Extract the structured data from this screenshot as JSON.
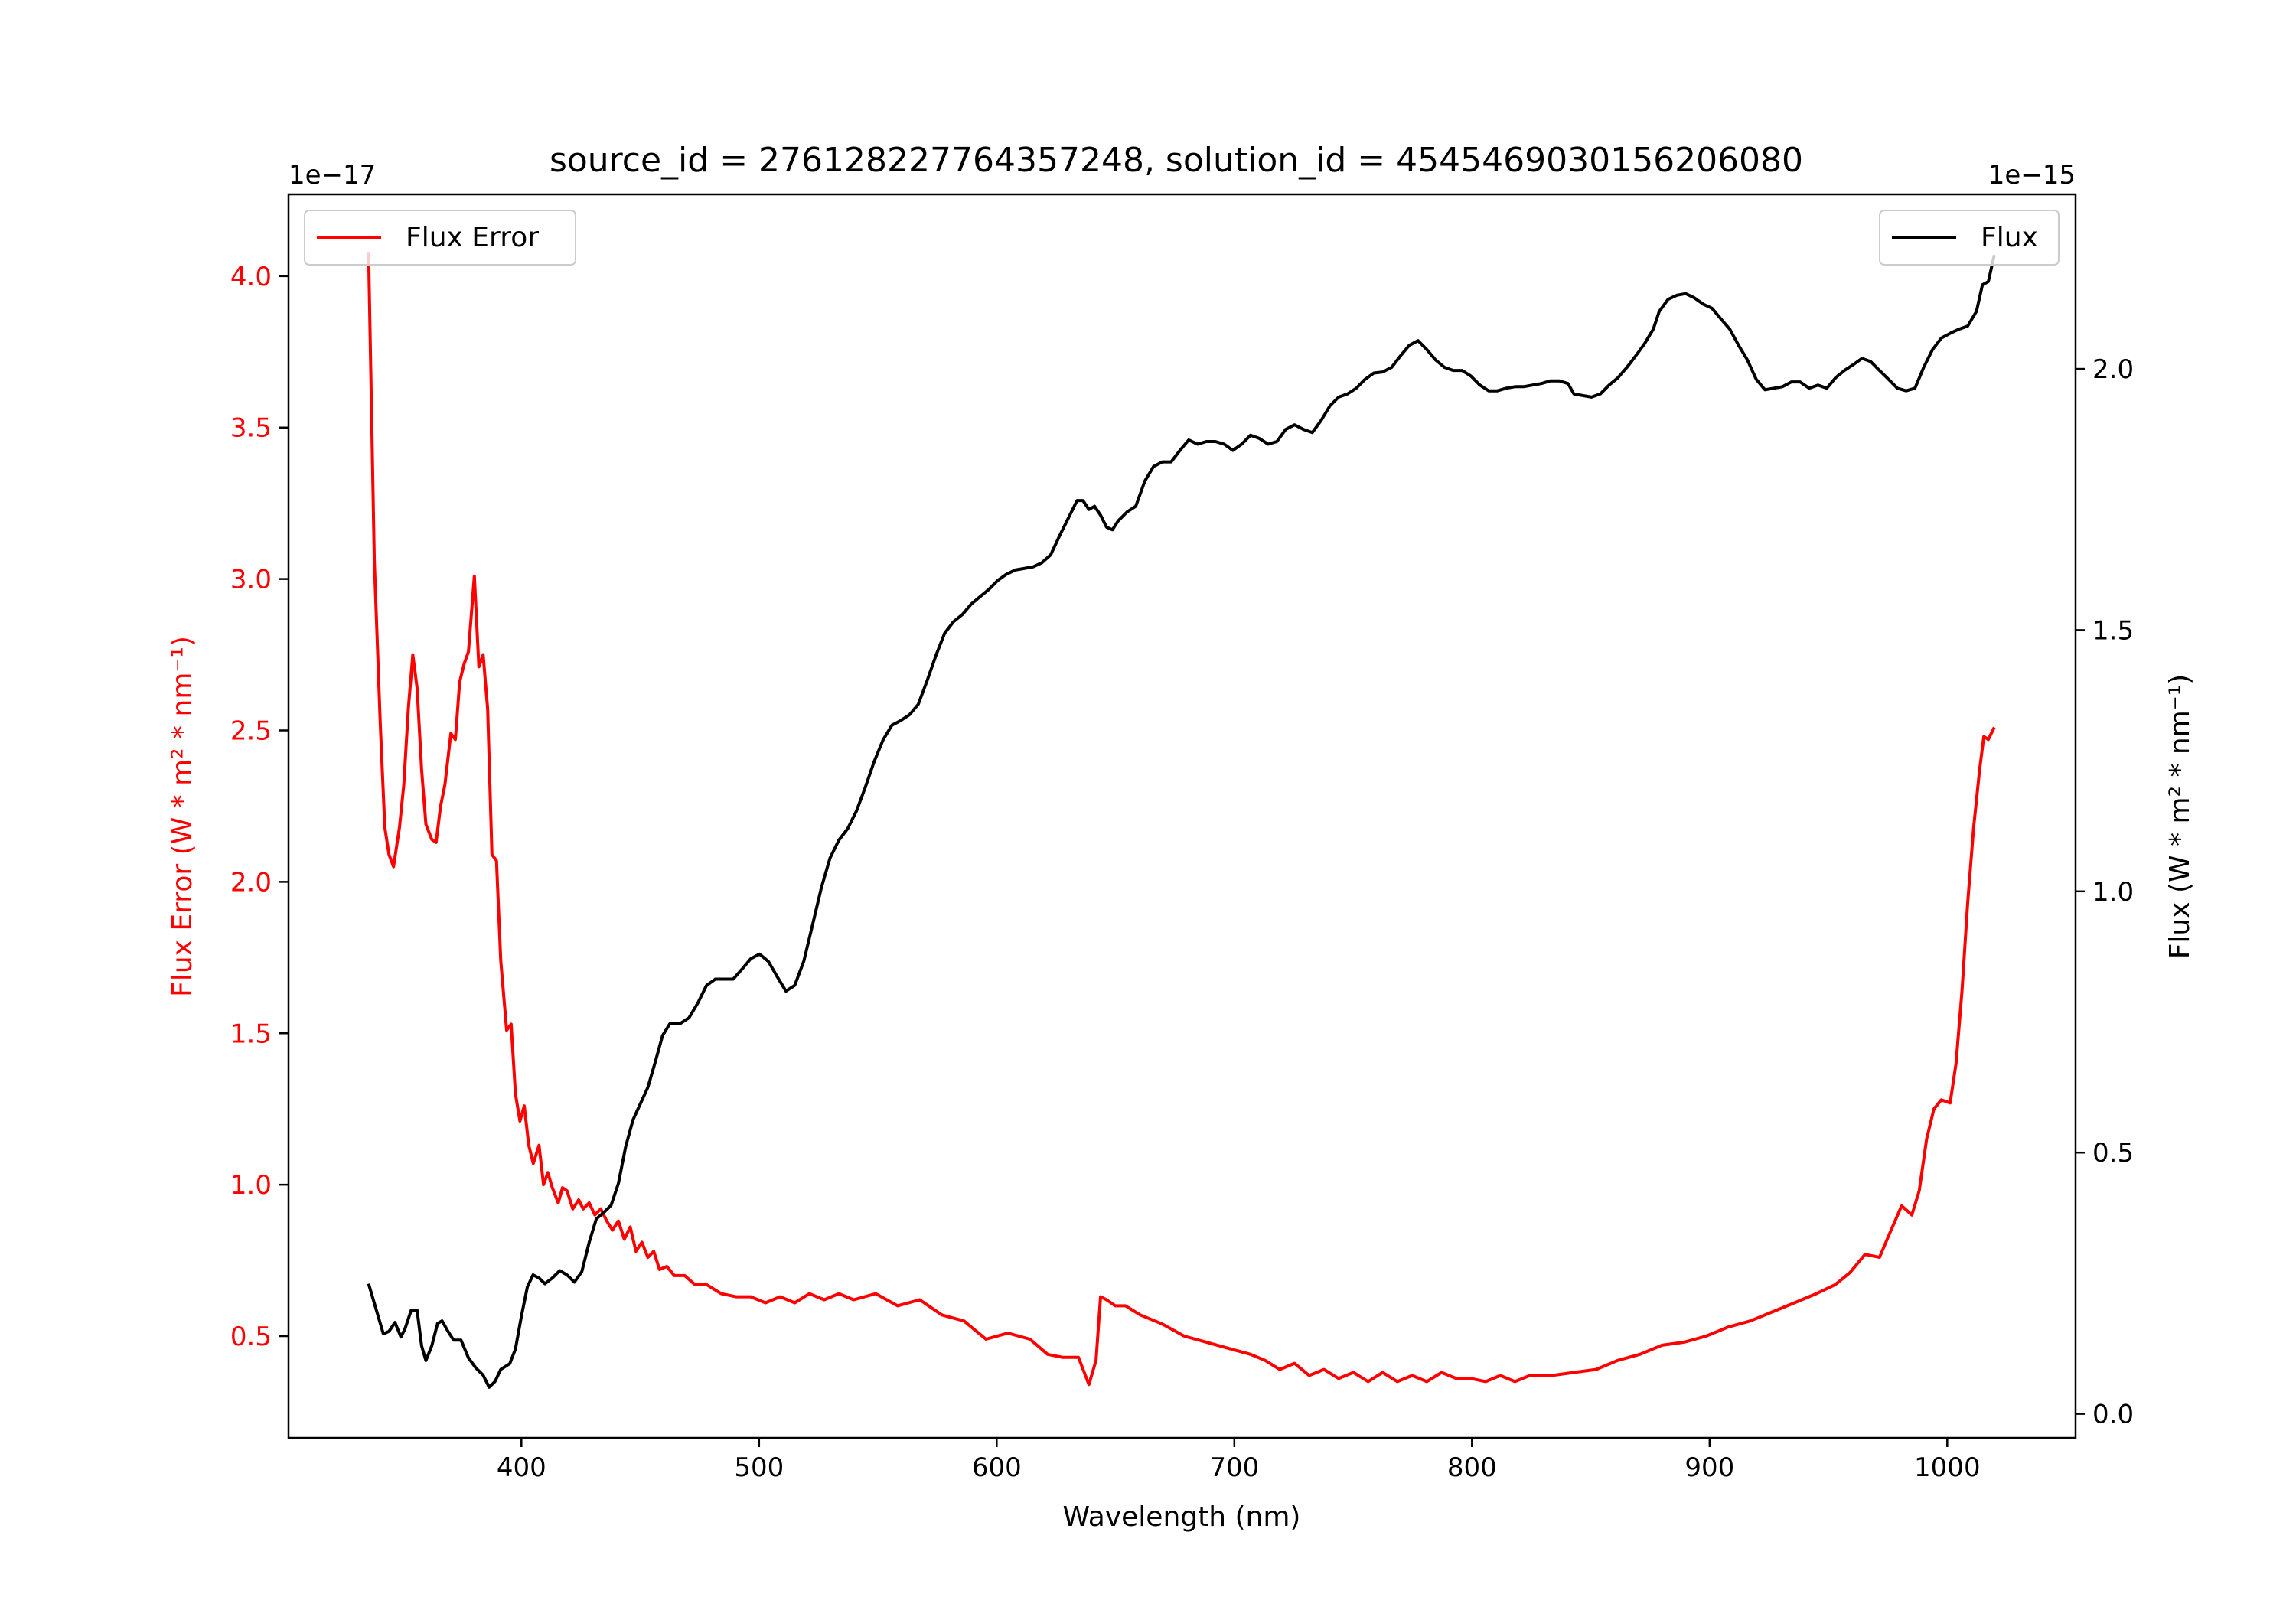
{
  "chart_data": {
    "type": "line",
    "title": "source_id = 276128227764357248, solution_id = 4545469030156206080",
    "xlabel": "Wavelength (nm)",
    "xlim": [
      302,
      1054
    ],
    "xticks": [
      400,
      500,
      600,
      700,
      800,
      900,
      1000
    ],
    "xtick_labels": [
      "400",
      "500",
      "600",
      "700",
      "800",
      "900",
      "1000"
    ],
    "left_axis": {
      "label": "Flux Error (W * m² * nm⁻¹)",
      "color": "#ff0000",
      "offset_text": "1e−17",
      "ylim": [
        0.164,
        4.27
      ],
      "ticks": [
        0.5,
        1.0,
        1.5,
        2.0,
        2.5,
        3.0,
        3.5,
        4.0
      ],
      "tick_labels": [
        "0.5",
        "1.0",
        "1.5",
        "2.0",
        "2.5",
        "3.0",
        "3.5",
        "4.0"
      ]
    },
    "right_axis": {
      "label": "Flux (W * m² * nm⁻¹)",
      "color": "#000000",
      "offset_text": "1e−15",
      "ylim": [
        -0.046,
        2.334
      ],
      "ticks": [
        0.0,
        0.5,
        1.0,
        1.5,
        2.0
      ],
      "tick_labels": [
        "0.0",
        "0.5",
        "1.0",
        "1.5",
        "2.0"
      ]
    },
    "legend_left": {
      "label": "Flux Error",
      "placement": "upper-left"
    },
    "legend_right": {
      "label": "Flux",
      "placement": "upper-right"
    },
    "series": [
      {
        "name": "Flux Error",
        "axis": "left",
        "color": "#ff0000",
        "x": [
          335.7,
          338.1,
          340.6,
          342.5,
          344.3,
          346.2,
          348.7,
          350.5,
          352.4,
          354.3,
          356.1,
          358.0,
          359.8,
          362.3,
          364.1,
          366.0,
          367.8,
          370.3,
          372.2,
          374.0,
          375.9,
          377.7,
          380.2,
          382.1,
          383.9,
          385.8,
          387.6,
          389.5,
          391.3,
          393.8,
          395.7,
          397.5,
          399.4,
          401.2,
          403.1,
          405.0,
          407.4,
          409.3,
          411.1,
          413.0,
          415.5,
          417.3,
          419.2,
          421.6,
          424.1,
          426.0,
          428.5,
          430.9,
          433.4,
          435.9,
          438.3,
          440.8,
          443.3,
          445.8,
          448.2,
          450.7,
          453.2,
          455.7,
          458.1,
          461.2,
          464.3,
          468.7,
          473.0,
          477.9,
          484.1,
          490.3,
          496.5,
          502.7,
          508.9,
          515.0,
          521.2,
          527.4,
          533.6,
          539.8,
          549.1,
          558.3,
          567.6,
          576.9,
          586.2,
          595.5,
          604.7,
          614.0,
          621.4,
          627.6,
          634.4,
          638.8,
          641.8,
          643.7,
          646.2,
          649.9,
          654.2,
          660.4,
          669.7,
          678.9,
          688.2,
          697.5,
          706.8,
          712.9,
          719.1,
          725.3,
          731.5,
          737.7,
          743.9,
          750.1,
          756.3,
          762.4,
          768.6,
          774.8,
          781.0,
          787.2,
          793.4,
          799.6,
          805.8,
          811.9,
          818.1,
          824.3,
          833.6,
          842.9,
          852.2,
          861.4,
          870.7,
          880.0,
          889.3,
          898.5,
          907.8,
          917.1,
          926.4,
          935.7,
          944.9,
          952.9,
          959.1,
          965.4,
          971.5,
          975.8,
          980.8,
          985.1,
          988.2,
          991.3,
          994.4,
          997.5,
          1001.2,
          1003.7,
          1006.2,
          1008.6,
          1011.1,
          1013.6,
          1015.4,
          1017.3,
          1019.8
        ],
        "y": [
          4.08,
          3.06,
          2.52,
          2.18,
          2.09,
          2.05,
          2.18,
          2.32,
          2.57,
          2.75,
          2.64,
          2.37,
          2.19,
          2.14,
          2.13,
          2.25,
          2.32,
          2.49,
          2.47,
          2.66,
          2.72,
          2.76,
          3.01,
          2.71,
          2.75,
          2.57,
          2.09,
          2.07,
          1.74,
          1.51,
          1.53,
          1.3,
          1.21,
          1.26,
          1.13,
          1.07,
          1.13,
          1.0,
          1.04,
          0.99,
          0.94,
          0.99,
          0.98,
          0.92,
          0.95,
          0.92,
          0.94,
          0.9,
          0.92,
          0.88,
          0.85,
          0.88,
          0.82,
          0.86,
          0.78,
          0.81,
          0.76,
          0.78,
          0.72,
          0.73,
          0.7,
          0.7,
          0.67,
          0.67,
          0.64,
          0.63,
          0.63,
          0.61,
          0.63,
          0.61,
          0.64,
          0.62,
          0.64,
          0.62,
          0.64,
          0.6,
          0.62,
          0.57,
          0.55,
          0.49,
          0.51,
          0.49,
          0.44,
          0.43,
          0.43,
          0.34,
          0.42,
          0.63,
          0.62,
          0.6,
          0.6,
          0.57,
          0.54,
          0.5,
          0.48,
          0.46,
          0.44,
          0.42,
          0.39,
          0.41,
          0.37,
          0.39,
          0.36,
          0.38,
          0.35,
          0.38,
          0.35,
          0.37,
          0.35,
          0.38,
          0.36,
          0.36,
          0.35,
          0.37,
          0.35,
          0.37,
          0.37,
          0.38,
          0.39,
          0.42,
          0.44,
          0.47,
          0.48,
          0.5,
          0.53,
          0.55,
          0.58,
          0.61,
          0.64,
          0.67,
          0.71,
          0.77,
          0.76,
          0.84,
          0.93,
          0.9,
          0.98,
          1.15,
          1.25,
          1.28,
          1.27,
          1.4,
          1.64,
          1.93,
          2.18,
          2.37,
          2.48,
          2.47,
          2.51
        ]
      },
      {
        "name": "Flux",
        "axis": "right",
        "color": "#000000",
        "x": [
          335.7,
          338.8,
          341.9,
          344.3,
          346.8,
          349.3,
          351.1,
          353.6,
          356.1,
          358.0,
          359.8,
          362.3,
          364.7,
          366.6,
          369.1,
          371.5,
          374.6,
          377.7,
          380.8,
          383.9,
          386.4,
          388.9,
          391.3,
          395.1,
          397.5,
          400.0,
          402.5,
          404.9,
          407.4,
          409.9,
          413.0,
          416.1,
          419.2,
          422.3,
          425.4,
          428.5,
          431.5,
          434.6,
          437.7,
          440.8,
          443.9,
          447.0,
          450.1,
          453.2,
          456.3,
          459.4,
          462.5,
          466.8,
          470.5,
          474.2,
          477.9,
          481.6,
          485.4,
          489.1,
          492.8,
          496.5,
          500.2,
          503.9,
          507.6,
          511.3,
          515.0,
          518.8,
          522.5,
          526.2,
          529.9,
          533.6,
          537.3,
          541.0,
          544.7,
          548.4,
          552.2,
          555.9,
          559.6,
          563.3,
          567.0,
          570.7,
          574.4,
          578.1,
          581.8,
          585.6,
          589.3,
          593.0,
          596.7,
          600.4,
          604.1,
          607.8,
          611.5,
          615.3,
          619.0,
          622.7,
          626.4,
          630.1,
          633.8,
          636.3,
          638.8,
          641.2,
          643.7,
          646.2,
          648.7,
          651.1,
          654.8,
          658.5,
          662.3,
          666.0,
          669.7,
          673.4,
          677.1,
          680.8,
          684.5,
          688.2,
          692.0,
          695.7,
          699.4,
          703.1,
          706.8,
          710.5,
          714.2,
          717.9,
          721.6,
          725.3,
          729.1,
          732.8,
          736.5,
          740.2,
          743.9,
          747.6,
          751.3,
          755.0,
          758.7,
          762.4,
          766.2,
          769.9,
          773.6,
          777.3,
          781.0,
          784.7,
          788.4,
          792.1,
          795.8,
          799.6,
          803.3,
          807.0,
          810.7,
          814.4,
          818.1,
          821.8,
          825.5,
          829.2,
          833.0,
          836.7,
          840.4,
          842.9,
          846.6,
          850.3,
          854.0,
          857.7,
          861.4,
          865.2,
          868.9,
          872.6,
          876.3,
          878.8,
          882.5,
          886.2,
          889.9,
          893.6,
          897.3,
          901.0,
          904.7,
          908.5,
          912.2,
          915.9,
          919.6,
          923.3,
          927.0,
          930.7,
          934.4,
          938.1,
          941.9,
          945.6,
          949.3,
          953.0,
          956.7,
          960.4,
          964.1,
          967.8,
          971.5,
          975.3,
          979.0,
          982.7,
          986.4,
          990.1,
          993.8,
          997.5,
          1001.2,
          1004.9,
          1008.6,
          1012.3,
          1014.8,
          1017.3,
          1019.8
        ],
        "y": [
          0.249,
          0.201,
          0.153,
          0.158,
          0.175,
          0.147,
          0.164,
          0.198,
          0.198,
          0.13,
          0.102,
          0.13,
          0.173,
          0.178,
          0.158,
          0.141,
          0.141,
          0.107,
          0.088,
          0.074,
          0.051,
          0.062,
          0.085,
          0.096,
          0.124,
          0.187,
          0.243,
          0.266,
          0.26,
          0.249,
          0.26,
          0.274,
          0.266,
          0.252,
          0.272,
          0.328,
          0.373,
          0.385,
          0.399,
          0.441,
          0.512,
          0.563,
          0.594,
          0.625,
          0.673,
          0.724,
          0.747,
          0.747,
          0.758,
          0.786,
          0.82,
          0.832,
          0.832,
          0.832,
          0.851,
          0.871,
          0.88,
          0.866,
          0.837,
          0.809,
          0.82,
          0.866,
          0.936,
          1.007,
          1.064,
          1.098,
          1.12,
          1.154,
          1.199,
          1.248,
          1.29,
          1.318,
          1.327,
          1.338,
          1.358,
          1.403,
          1.451,
          1.494,
          1.516,
          1.53,
          1.55,
          1.564,
          1.578,
          1.595,
          1.607,
          1.615,
          1.618,
          1.621,
          1.629,
          1.644,
          1.68,
          1.714,
          1.748,
          1.748,
          1.731,
          1.737,
          1.72,
          1.697,
          1.692,
          1.709,
          1.726,
          1.737,
          1.785,
          1.813,
          1.822,
          1.822,
          1.844,
          1.864,
          1.856,
          1.861,
          1.861,
          1.856,
          1.844,
          1.856,
          1.873,
          1.867,
          1.856,
          1.861,
          1.884,
          1.893,
          1.884,
          1.878,
          1.901,
          1.929,
          1.946,
          1.952,
          1.963,
          1.98,
          1.992,
          1.994,
          2.003,
          2.025,
          2.045,
          2.054,
          2.037,
          2.017,
          2.003,
          1.997,
          1.997,
          1.986,
          1.969,
          1.958,
          1.958,
          1.963,
          1.966,
          1.966,
          1.969,
          1.972,
          1.977,
          1.977,
          1.972,
          1.952,
          1.949,
          1.946,
          1.952,
          1.969,
          1.983,
          2.003,
          2.025,
          2.048,
          2.076,
          2.11,
          2.133,
          2.141,
          2.144,
          2.136,
          2.124,
          2.116,
          2.096,
          2.076,
          2.045,
          2.017,
          1.98,
          1.96,
          1.963,
          1.966,
          1.975,
          1.975,
          1.963,
          1.969,
          1.963,
          1.983,
          1.997,
          2.008,
          2.02,
          2.014,
          1.997,
          1.98,
          1.963,
          1.958,
          1.963,
          2.003,
          2.037,
          2.059,
          2.068,
          2.076,
          2.082,
          2.11,
          2.161,
          2.167,
          2.218
        ]
      }
    ]
  }
}
